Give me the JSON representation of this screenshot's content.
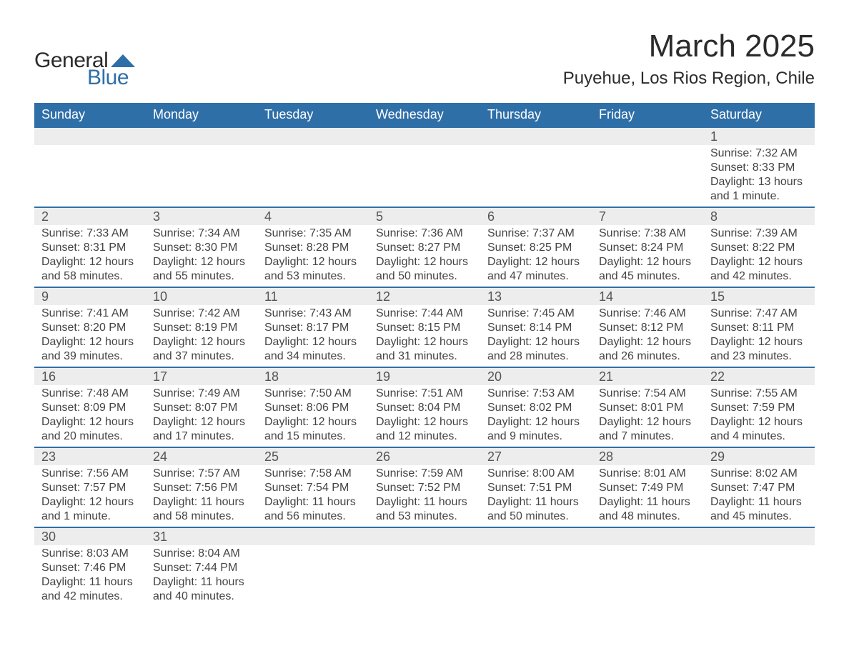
{
  "brand": {
    "word1": "General",
    "word2": "Blue",
    "shape_color": "#2f6fa8"
  },
  "title": {
    "month": "March 2025",
    "location": "Puyehue, Los Rios Region, Chile"
  },
  "columns": [
    "Sunday",
    "Monday",
    "Tuesday",
    "Wednesday",
    "Thursday",
    "Friday",
    "Saturday"
  ],
  "style": {
    "header_bg": "#2f6fa8",
    "header_text": "#ffffff",
    "daynum_bg": "#ededed",
    "daynum_border": "#2f6fa8",
    "body_text": "#444444"
  },
  "weeks": [
    [
      {
        "day": "",
        "sunrise": "",
        "sunset": "",
        "daylight": ""
      },
      {
        "day": "",
        "sunrise": "",
        "sunset": "",
        "daylight": ""
      },
      {
        "day": "",
        "sunrise": "",
        "sunset": "",
        "daylight": ""
      },
      {
        "day": "",
        "sunrise": "",
        "sunset": "",
        "daylight": ""
      },
      {
        "day": "",
        "sunrise": "",
        "sunset": "",
        "daylight": ""
      },
      {
        "day": "",
        "sunrise": "",
        "sunset": "",
        "daylight": ""
      },
      {
        "day": "1",
        "sunrise": "Sunrise: 7:32 AM",
        "sunset": "Sunset: 8:33 PM",
        "daylight": "Daylight: 13 hours and 1 minute."
      }
    ],
    [
      {
        "day": "2",
        "sunrise": "Sunrise: 7:33 AM",
        "sunset": "Sunset: 8:31 PM",
        "daylight": "Daylight: 12 hours and 58 minutes."
      },
      {
        "day": "3",
        "sunrise": "Sunrise: 7:34 AM",
        "sunset": "Sunset: 8:30 PM",
        "daylight": "Daylight: 12 hours and 55 minutes."
      },
      {
        "day": "4",
        "sunrise": "Sunrise: 7:35 AM",
        "sunset": "Sunset: 8:28 PM",
        "daylight": "Daylight: 12 hours and 53 minutes."
      },
      {
        "day": "5",
        "sunrise": "Sunrise: 7:36 AM",
        "sunset": "Sunset: 8:27 PM",
        "daylight": "Daylight: 12 hours and 50 minutes."
      },
      {
        "day": "6",
        "sunrise": "Sunrise: 7:37 AM",
        "sunset": "Sunset: 8:25 PM",
        "daylight": "Daylight: 12 hours and 47 minutes."
      },
      {
        "day": "7",
        "sunrise": "Sunrise: 7:38 AM",
        "sunset": "Sunset: 8:24 PM",
        "daylight": "Daylight: 12 hours and 45 minutes."
      },
      {
        "day": "8",
        "sunrise": "Sunrise: 7:39 AM",
        "sunset": "Sunset: 8:22 PM",
        "daylight": "Daylight: 12 hours and 42 minutes."
      }
    ],
    [
      {
        "day": "9",
        "sunrise": "Sunrise: 7:41 AM",
        "sunset": "Sunset: 8:20 PM",
        "daylight": "Daylight: 12 hours and 39 minutes."
      },
      {
        "day": "10",
        "sunrise": "Sunrise: 7:42 AM",
        "sunset": "Sunset: 8:19 PM",
        "daylight": "Daylight: 12 hours and 37 minutes."
      },
      {
        "day": "11",
        "sunrise": "Sunrise: 7:43 AM",
        "sunset": "Sunset: 8:17 PM",
        "daylight": "Daylight: 12 hours and 34 minutes."
      },
      {
        "day": "12",
        "sunrise": "Sunrise: 7:44 AM",
        "sunset": "Sunset: 8:15 PM",
        "daylight": "Daylight: 12 hours and 31 minutes."
      },
      {
        "day": "13",
        "sunrise": "Sunrise: 7:45 AM",
        "sunset": "Sunset: 8:14 PM",
        "daylight": "Daylight: 12 hours and 28 minutes."
      },
      {
        "day": "14",
        "sunrise": "Sunrise: 7:46 AM",
        "sunset": "Sunset: 8:12 PM",
        "daylight": "Daylight: 12 hours and 26 minutes."
      },
      {
        "day": "15",
        "sunrise": "Sunrise: 7:47 AM",
        "sunset": "Sunset: 8:11 PM",
        "daylight": "Daylight: 12 hours and 23 minutes."
      }
    ],
    [
      {
        "day": "16",
        "sunrise": "Sunrise: 7:48 AM",
        "sunset": "Sunset: 8:09 PM",
        "daylight": "Daylight: 12 hours and 20 minutes."
      },
      {
        "day": "17",
        "sunrise": "Sunrise: 7:49 AM",
        "sunset": "Sunset: 8:07 PM",
        "daylight": "Daylight: 12 hours and 17 minutes."
      },
      {
        "day": "18",
        "sunrise": "Sunrise: 7:50 AM",
        "sunset": "Sunset: 8:06 PM",
        "daylight": "Daylight: 12 hours and 15 minutes."
      },
      {
        "day": "19",
        "sunrise": "Sunrise: 7:51 AM",
        "sunset": "Sunset: 8:04 PM",
        "daylight": "Daylight: 12 hours and 12 minutes."
      },
      {
        "day": "20",
        "sunrise": "Sunrise: 7:53 AM",
        "sunset": "Sunset: 8:02 PM",
        "daylight": "Daylight: 12 hours and 9 minutes."
      },
      {
        "day": "21",
        "sunrise": "Sunrise: 7:54 AM",
        "sunset": "Sunset: 8:01 PM",
        "daylight": "Daylight: 12 hours and 7 minutes."
      },
      {
        "day": "22",
        "sunrise": "Sunrise: 7:55 AM",
        "sunset": "Sunset: 7:59 PM",
        "daylight": "Daylight: 12 hours and 4 minutes."
      }
    ],
    [
      {
        "day": "23",
        "sunrise": "Sunrise: 7:56 AM",
        "sunset": "Sunset: 7:57 PM",
        "daylight": "Daylight: 12 hours and 1 minute."
      },
      {
        "day": "24",
        "sunrise": "Sunrise: 7:57 AM",
        "sunset": "Sunset: 7:56 PM",
        "daylight": "Daylight: 11 hours and 58 minutes."
      },
      {
        "day": "25",
        "sunrise": "Sunrise: 7:58 AM",
        "sunset": "Sunset: 7:54 PM",
        "daylight": "Daylight: 11 hours and 56 minutes."
      },
      {
        "day": "26",
        "sunrise": "Sunrise: 7:59 AM",
        "sunset": "Sunset: 7:52 PM",
        "daylight": "Daylight: 11 hours and 53 minutes."
      },
      {
        "day": "27",
        "sunrise": "Sunrise: 8:00 AM",
        "sunset": "Sunset: 7:51 PM",
        "daylight": "Daylight: 11 hours and 50 minutes."
      },
      {
        "day": "28",
        "sunrise": "Sunrise: 8:01 AM",
        "sunset": "Sunset: 7:49 PM",
        "daylight": "Daylight: 11 hours and 48 minutes."
      },
      {
        "day": "29",
        "sunrise": "Sunrise: 8:02 AM",
        "sunset": "Sunset: 7:47 PM",
        "daylight": "Daylight: 11 hours and 45 minutes."
      }
    ],
    [
      {
        "day": "30",
        "sunrise": "Sunrise: 8:03 AM",
        "sunset": "Sunset: 7:46 PM",
        "daylight": "Daylight: 11 hours and 42 minutes."
      },
      {
        "day": "31",
        "sunrise": "Sunrise: 8:04 AM",
        "sunset": "Sunset: 7:44 PM",
        "daylight": "Daylight: 11 hours and 40 minutes."
      },
      {
        "day": "",
        "sunrise": "",
        "sunset": "",
        "daylight": ""
      },
      {
        "day": "",
        "sunrise": "",
        "sunset": "",
        "daylight": ""
      },
      {
        "day": "",
        "sunrise": "",
        "sunset": "",
        "daylight": ""
      },
      {
        "day": "",
        "sunrise": "",
        "sunset": "",
        "daylight": ""
      },
      {
        "day": "",
        "sunrise": "",
        "sunset": "",
        "daylight": ""
      }
    ]
  ]
}
